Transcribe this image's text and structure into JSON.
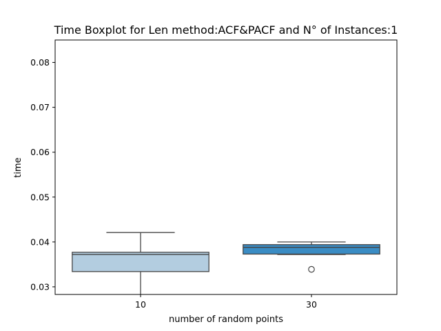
{
  "chart_data": {
    "type": "box",
    "title": "Time Boxplot for Len method:ACF&PACF and N° of Instances:1",
    "xlabel": "number of random points",
    "ylabel": "time",
    "ylim": [
      0.0283,
      0.085
    ],
    "yticks": [
      {
        "value": 0.03,
        "label": "0.03"
      },
      {
        "value": 0.04,
        "label": "0.04"
      },
      {
        "value": 0.05,
        "label": "0.05"
      },
      {
        "value": 0.06,
        "label": "0.06"
      },
      {
        "value": 0.07,
        "label": "0.07"
      },
      {
        "value": 0.08,
        "label": "0.08"
      }
    ],
    "categories": [
      "10",
      "30"
    ],
    "boxes": [
      {
        "category": "10",
        "whisker_low": 0.0282,
        "q1": 0.0334,
        "median": 0.0372,
        "q3": 0.0377,
        "whisker_high": 0.0421,
        "outliers": [],
        "color": "#b3cde0"
      },
      {
        "category": "30",
        "whisker_low": 0.0372,
        "q1": 0.0373,
        "median": 0.0388,
        "q3": 0.0394,
        "whisker_high": 0.04,
        "outliers": [
          0.0339
        ],
        "color": "#3a8cc4"
      }
    ],
    "grid": false,
    "legend": "none"
  }
}
